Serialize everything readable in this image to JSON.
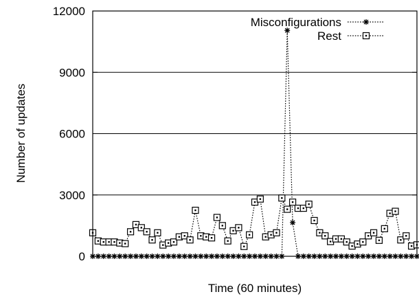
{
  "chart_data": {
    "type": "line",
    "title": "",
    "xlabel": "Time (60 minutes)",
    "ylabel": "Number of updates",
    "xlim": [
      0,
      60
    ],
    "ylim": [
      0,
      12000
    ],
    "yticks": [
      "0",
      "3000",
      "6000",
      "9000",
      "12000"
    ],
    "grid": "horizontal",
    "legend_position": "top-right",
    "x": [
      0,
      1,
      2,
      3,
      4,
      5,
      6,
      7,
      8,
      9,
      10,
      11,
      12,
      13,
      14,
      15,
      16,
      17,
      18,
      19,
      20,
      21,
      22,
      23,
      24,
      25,
      26,
      27,
      28,
      29,
      30,
      31,
      32,
      33,
      34,
      35,
      36,
      37,
      38,
      39,
      40,
      41,
      42,
      43,
      44,
      45,
      46,
      47,
      48,
      49,
      50,
      51,
      52,
      53,
      54,
      55,
      56,
      57,
      58,
      59,
      60
    ],
    "series": [
      {
        "name": "Misconfigurations",
        "marker": "asterisk",
        "color": "#000000",
        "values": [
          0,
          0,
          0,
          0,
          0,
          0,
          0,
          0,
          0,
          0,
          0,
          0,
          0,
          0,
          0,
          0,
          0,
          0,
          0,
          0,
          0,
          0,
          0,
          0,
          0,
          0,
          0,
          0,
          0,
          0,
          0,
          0,
          0,
          0,
          0,
          0,
          11050,
          1650,
          0,
          0,
          0,
          0,
          0,
          0,
          0,
          0,
          0,
          0,
          0,
          0,
          0,
          0,
          0,
          0,
          0,
          0,
          0,
          0,
          0,
          0,
          0
        ]
      },
      {
        "name": "Rest",
        "marker": "square",
        "color": "#000000",
        "values": [
          1150,
          750,
          700,
          700,
          700,
          650,
          620,
          1200,
          1550,
          1400,
          1200,
          800,
          1150,
          550,
          650,
          700,
          950,
          1000,
          800,
          2250,
          1000,
          950,
          900,
          1900,
          1500,
          750,
          1250,
          1400,
          480,
          1050,
          2650,
          2800,
          950,
          1050,
          1150,
          2850,
          2300,
          2650,
          2350,
          2350,
          2550,
          1750,
          1150,
          1000,
          720,
          850,
          850,
          700,
          500,
          600,
          700,
          1000,
          1150,
          780,
          1350,
          2100,
          2200,
          800,
          1000,
          500,
          560
        ]
      }
    ]
  }
}
